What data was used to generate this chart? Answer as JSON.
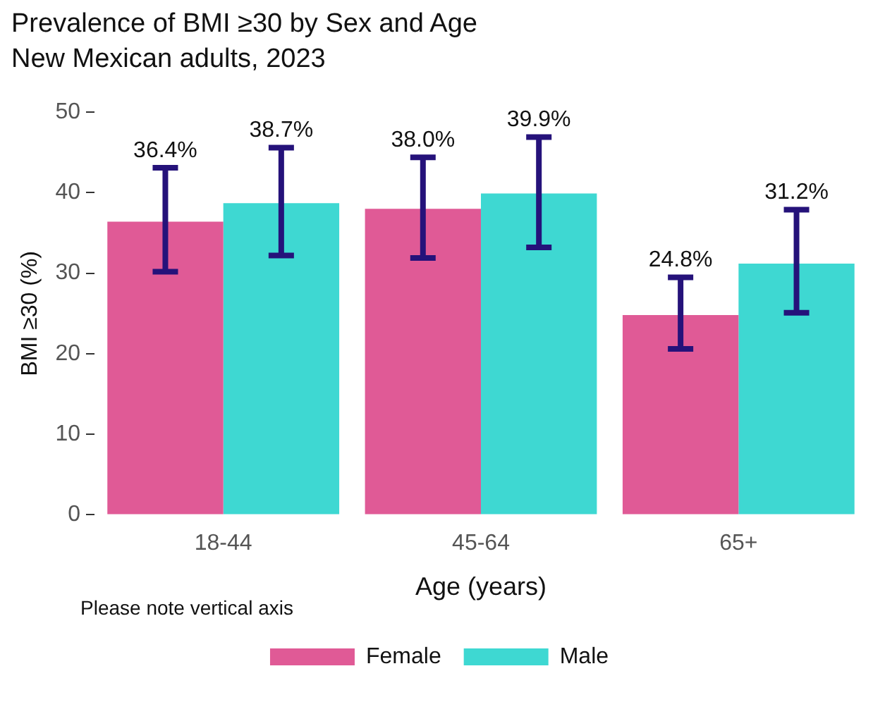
{
  "chart_data": {
    "type": "bar",
    "title": "Prevalence of BMI ≥30 by Sex and Age",
    "subtitle": "New Mexican adults, 2023",
    "xlabel": "Age (years)",
    "ylabel": "BMI ≥30 (%)",
    "categories": [
      "18-44",
      "45-64",
      "65+"
    ],
    "series": [
      {
        "name": "Female",
        "color": "#e05a96",
        "values": [
          36.4,
          38.0,
          24.8
        ],
        "errors": [
          [
            30.2,
            43.1
          ],
          [
            31.9,
            44.4
          ],
          [
            20.6,
            29.5
          ]
        ],
        "value_labels": [
          "36.4%",
          "38.0%",
          "24.8%"
        ]
      },
      {
        "name": "Male",
        "color": "#3ed8d2",
        "values": [
          38.7,
          39.9,
          31.2
        ],
        "errors": [
          [
            32.2,
            45.6
          ],
          [
            33.2,
            46.9
          ],
          [
            25.1,
            37.9
          ]
        ],
        "value_labels": [
          "38.7%",
          "39.9%",
          "31.2%"
        ]
      }
    ],
    "ylim": [
      0,
      50
    ],
    "yticks": [
      0,
      10,
      20,
      30,
      40,
      50
    ],
    "grid": false,
    "legend": "bottom",
    "annotations": [
      "Please note vertical axis"
    ]
  }
}
